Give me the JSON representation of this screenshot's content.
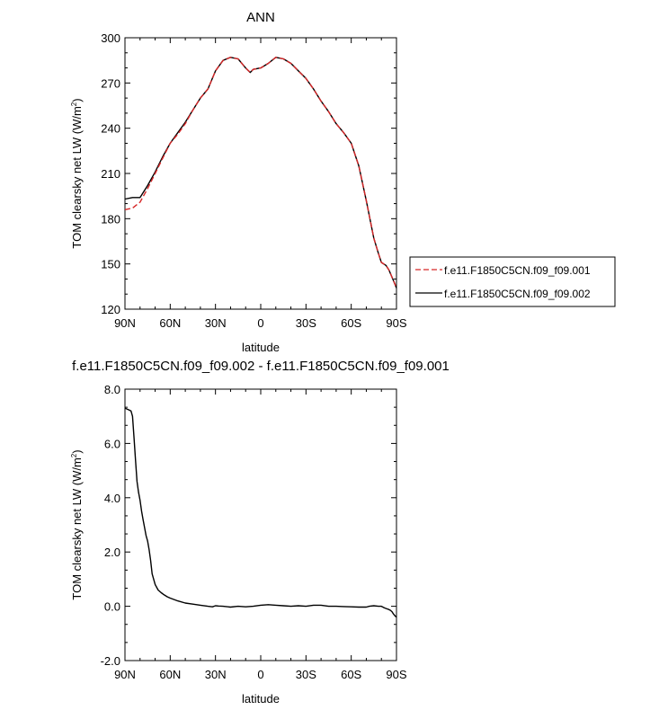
{
  "chart_data": [
    {
      "type": "line",
      "title": "ANN",
      "xlabel": "latitude",
      "ylabel": "TOM clearsky net LW (W/m",
      "ylabel_sup": "2",
      "ylabel_end": ")",
      "x_reversed": true,
      "xlim": [
        -90,
        90
      ],
      "ylim": [
        120,
        300
      ],
      "xticks": [
        {
          "value": -90,
          "label": "90N"
        },
        {
          "value": -60,
          "label": "60N"
        },
        {
          "value": -30,
          "label": "30N"
        },
        {
          "value": 0,
          "label": "0"
        },
        {
          "value": 30,
          "label": "30S"
        },
        {
          "value": 60,
          "label": "60S"
        },
        {
          "value": 90,
          "label": "90S"
        }
      ],
      "yticks": [
        {
          "value": 120,
          "label": "120"
        },
        {
          "value": 150,
          "label": "150"
        },
        {
          "value": 180,
          "label": "180"
        },
        {
          "value": 210,
          "label": "210"
        },
        {
          "value": 240,
          "label": "240"
        },
        {
          "value": 270,
          "label": "270"
        },
        {
          "value": 300,
          "label": "300"
        }
      ],
      "legend_position": "right",
      "series": [
        {
          "name": "f.e11.F1850C5CN.f09_f09.001",
          "color": "#d62728",
          "dash": "dashed",
          "x": [
            -90,
            -85,
            -80,
            -75,
            -70,
            -65,
            -60,
            -55,
            -50,
            -45,
            -40,
            -35,
            -30,
            -25,
            -20,
            -15,
            -10,
            -7,
            -5,
            0,
            5,
            10,
            15,
            20,
            25,
            30,
            35,
            40,
            45,
            50,
            55,
            60,
            65,
            70,
            75,
            78,
            80,
            83,
            85,
            88,
            90
          ],
          "y": [
            186,
            187,
            191,
            200,
            210,
            220,
            230,
            236,
            243,
            252,
            260,
            266,
            278,
            285,
            287,
            286,
            280,
            277,
            279,
            280,
            283,
            287,
            286,
            283,
            278,
            273,
            266,
            258,
            251,
            243,
            237,
            230,
            215,
            192,
            167,
            157,
            151,
            149,
            146,
            139,
            134
          ]
        },
        {
          "name": "f.e11.F1850C5CN.f09_f09.002",
          "color": "#000000",
          "dash": "solid",
          "x": [
            -90,
            -85,
            -80,
            -75,
            -70,
            -65,
            -60,
            -55,
            -50,
            -45,
            -40,
            -35,
            -30,
            -25,
            -20,
            -15,
            -10,
            -7,
            -5,
            0,
            5,
            10,
            15,
            20,
            25,
            30,
            35,
            40,
            45,
            50,
            55,
            60,
            65,
            70,
            75,
            78,
            80,
            83,
            85,
            88,
            90
          ],
          "y": [
            193,
            194,
            194,
            202,
            211,
            221,
            230,
            237,
            244,
            252,
            260,
            266,
            278,
            285,
            287,
            286,
            280,
            277,
            279,
            280,
            283,
            287,
            286,
            283,
            278,
            273,
            266,
            258,
            251,
            243,
            237,
            230,
            215,
            192,
            167,
            157,
            151,
            149,
            146,
            139,
            134
          ]
        }
      ]
    },
    {
      "type": "line",
      "title": "f.e11.F1850C5CN.f09_f09.002 - f.e11.F1850C5CN.f09_f09.001",
      "xlabel": "latitude",
      "ylabel": "TOM clearsky net LW (W/m",
      "ylabel_sup": "2",
      "ylabel_end": ")",
      "x_reversed": true,
      "xlim": [
        -90,
        90
      ],
      "ylim": [
        -2.0,
        8.0
      ],
      "xticks": [
        {
          "value": -90,
          "label": "90N"
        },
        {
          "value": -60,
          "label": "60N"
        },
        {
          "value": -30,
          "label": "30N"
        },
        {
          "value": 0,
          "label": "0"
        },
        {
          "value": 30,
          "label": "30S"
        },
        {
          "value": 60,
          "label": "60S"
        },
        {
          "value": 90,
          "label": "90S"
        }
      ],
      "yticks": [
        {
          "value": -2.0,
          "label": "-2.0"
        },
        {
          "value": 0.0,
          "label": "0.0"
        },
        {
          "value": 2.0,
          "label": "2.0"
        },
        {
          "value": 4.0,
          "label": "4.0"
        },
        {
          "value": 6.0,
          "label": "6.0"
        },
        {
          "value": 8.0,
          "label": "8.0"
        }
      ],
      "series": [
        {
          "color": "#000000",
          "dash": "solid",
          "x": [
            -90,
            -88,
            -86,
            -85,
            -84,
            -83,
            -82,
            -81,
            -80,
            -79,
            -78,
            -77,
            -76,
            -75,
            -74,
            -73,
            -72,
            -70,
            -68,
            -66,
            -64,
            -62,
            -60,
            -55,
            -50,
            -45,
            -40,
            -35,
            -32,
            -30,
            -28,
            -25,
            -20,
            -15,
            -10,
            -5,
            0,
            5,
            10,
            15,
            20,
            25,
            30,
            35,
            40,
            45,
            50,
            55,
            60,
            65,
            70,
            72,
            75,
            78,
            80,
            82,
            84,
            85,
            86,
            87,
            88,
            89,
            90
          ],
          "y": [
            7.3,
            7.25,
            7.2,
            7.0,
            6.2,
            5.4,
            4.6,
            4.2,
            3.9,
            3.5,
            3.2,
            2.9,
            2.6,
            2.4,
            2.1,
            1.7,
            1.2,
            0.8,
            0.6,
            0.5,
            0.42,
            0.35,
            0.3,
            0.2,
            0.12,
            0.08,
            0.04,
            0.0,
            -0.02,
            0.02,
            0.01,
            0.0,
            -0.03,
            0.0,
            -0.02,
            0.0,
            0.04,
            0.06,
            0.04,
            0.02,
            0.0,
            0.02,
            0.0,
            0.04,
            0.04,
            0.0,
            0.0,
            -0.01,
            -0.02,
            -0.03,
            -0.03,
            0.0,
            0.02,
            0.0,
            0.0,
            -0.06,
            -0.1,
            -0.12,
            -0.15,
            -0.2,
            -0.28,
            -0.35,
            -0.4
          ]
        }
      ]
    }
  ]
}
